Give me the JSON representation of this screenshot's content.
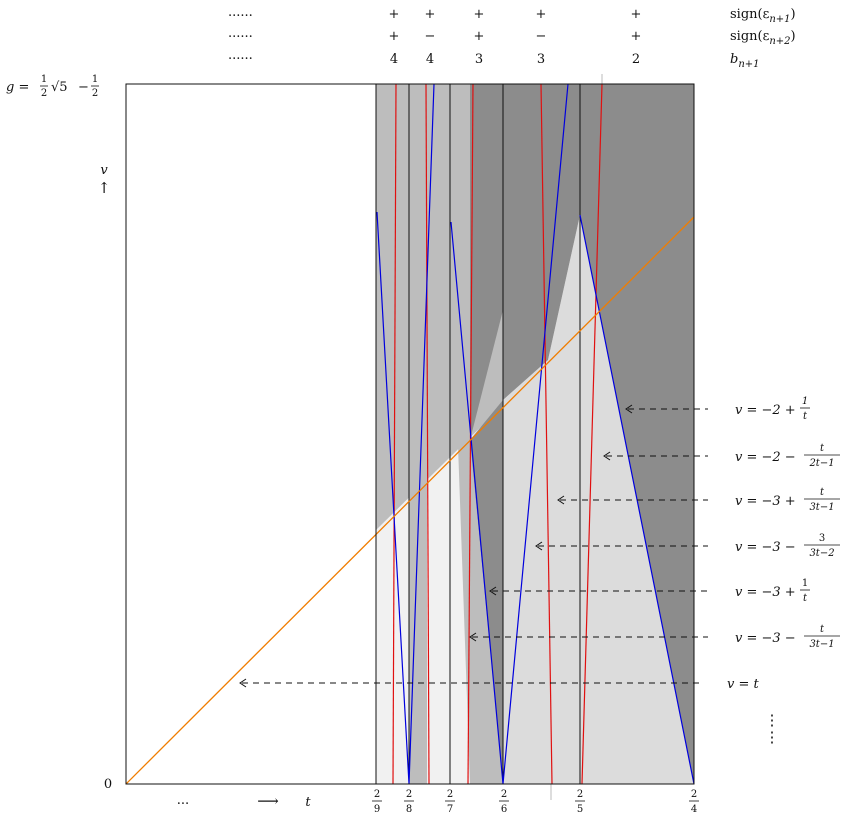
{
  "header": {
    "rows": [
      {
        "dots": "......",
        "signs": [
          "+",
          "+",
          "+",
          "+",
          "+"
        ],
        "label": "sign(ε",
        "sub": "n+1",
        "close": ")"
      },
      {
        "dots": "......",
        "signs": [
          "+",
          "−",
          "+",
          "−",
          "+"
        ],
        "label": "sign(ε",
        "sub": "n+2",
        "close": ")"
      },
      {
        "dots": "......",
        "signs": [
          "4",
          "4",
          "3",
          "3",
          "2"
        ],
        "label": "b",
        "sub": "n+1",
        "close": ""
      }
    ]
  },
  "left": {
    "g_lhs": "g =",
    "g_f1_num": "1",
    "g_f1_den": "2",
    "g_sqrt": "√5",
    "g_minus": "−",
    "g_f2_num": "1",
    "g_f2_den": "2",
    "origin": "0",
    "v_label": "v",
    "v_arrow": "↑"
  },
  "bottom": {
    "ellipsis": "...",
    "arrow": "⟶",
    "t_label": "t",
    "ticks": [
      {
        "num": "2",
        "den": "9"
      },
      {
        "num": "2",
        "den": "8"
      },
      {
        "num": "2",
        "den": "7"
      },
      {
        "num": "2",
        "den": "6"
      },
      {
        "num": "2",
        "den": "5"
      },
      {
        "num": "2",
        "den": "4"
      }
    ]
  },
  "annotations": [
    {
      "pre": "v = −2 +",
      "num": "1",
      "den": "t"
    },
    {
      "pre": "v = −2 −",
      "num": "t",
      "den": "2t−1"
    },
    {
      "pre": "v = −3 +",
      "num": "t",
      "den": "3t−1"
    },
    {
      "pre": "v = −3 −",
      "num": "3",
      "den": "3t−2"
    },
    {
      "pre": "v = −3 +",
      "num": "1",
      "den": "t"
    },
    {
      "pre": "v = −3 −",
      "num": "t",
      "den": "3t−1"
    },
    {
      "pre": "v = t",
      "num": "",
      "den": ""
    }
  ],
  "vdots": "⋮",
  "colors": {
    "light_region": "#f1f1f1",
    "mid_region": "#dcdcdc",
    "gray_region": "#bdbdbd",
    "mid_gray_region": "#a6a6a6",
    "dark_region": "#8c8c8c",
    "blue_lines": "#0000dd",
    "red_lines": "#e01010",
    "orange_line": "#f07d00"
  }
}
